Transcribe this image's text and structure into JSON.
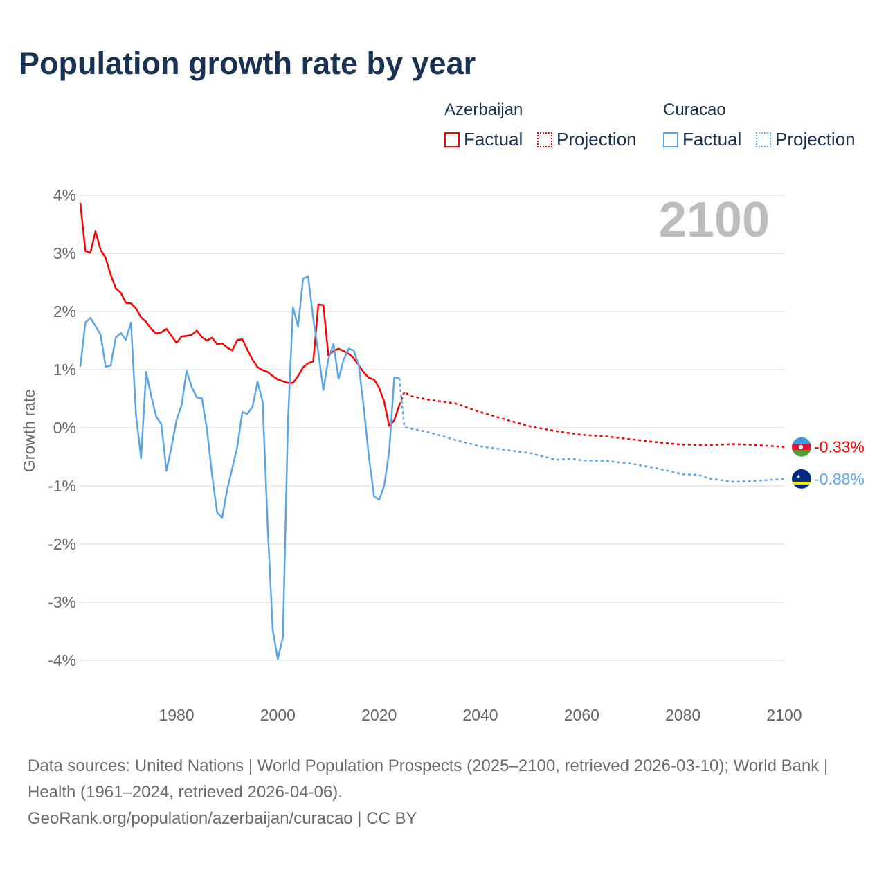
{
  "title": "Population growth rate by year",
  "legend": {
    "groups": [
      {
        "name": "Azerbaijan",
        "factual": "Factual",
        "projection": "Projection",
        "color": "#ff0000"
      },
      {
        "name": "Curacao",
        "factual": "Factual",
        "projection": "Projection",
        "color": "#5aa5ea"
      }
    ]
  },
  "year_overlay": "2100",
  "source": {
    "line1": "Data sources: United Nations | World Population Prospects (2025–2100, retrieved 2026-03-10); World Bank | Health (1961–2024, retrieved 2026-04-06).",
    "line2": "GeoRank.org/population/azerbaijan/curacao | CC BY"
  },
  "chart_data": {
    "type": "line",
    "title": "Population growth rate by year",
    "xlabel": "",
    "ylabel": "Growth rate",
    "xlim": [
      1961,
      2100
    ],
    "ylim": [
      -4,
      4
    ],
    "x_ticks": [
      1980,
      2000,
      2020,
      2040,
      2060,
      2080,
      2100
    ],
    "y_ticks": [
      4,
      3,
      2,
      1,
      0,
      -1,
      -2,
      -3,
      -4
    ],
    "y_tick_labels": [
      "4%",
      "3%",
      "2%",
      "1%",
      "0%",
      "-1%",
      "-2%",
      "-3%",
      "-4%"
    ],
    "grid": true,
    "legend_position": "top-right",
    "series": [
      {
        "name": "Azerbaijan",
        "color": "#ff0000",
        "end_label": "-0.33%",
        "flag": "azerbaijan-flag",
        "factual": {
          "x": [
            1961,
            1962,
            1963,
            1964,
            1965,
            1966,
            1967,
            1968,
            1969,
            1970,
            1971,
            1972,
            1973,
            1974,
            1975,
            1976,
            1977,
            1978,
            1979,
            1980,
            1981,
            1982,
            1983,
            1984,
            1985,
            1986,
            1987,
            1988,
            1989,
            1990,
            1991,
            1992,
            1993,
            1994,
            1995,
            1996,
            1997,
            1998,
            1999,
            2000,
            2001,
            2002,
            2003,
            2004,
            2005,
            2006,
            2007,
            2008,
            2009,
            2010,
            2011,
            2012,
            2013,
            2014,
            2015,
            2016,
            2017,
            2018,
            2019,
            2020,
            2021,
            2022,
            2023,
            2024
          ],
          "y": [
            3.87,
            3.04,
            3.01,
            3.38,
            3.06,
            2.92,
            2.63,
            2.4,
            2.32,
            2.15,
            2.14,
            2.05,
            1.9,
            1.82,
            1.7,
            1.62,
            1.64,
            1.7,
            1.58,
            1.46,
            1.57,
            1.58,
            1.6,
            1.67,
            1.56,
            1.5,
            1.55,
            1.44,
            1.45,
            1.38,
            1.33,
            1.51,
            1.52,
            1.34,
            1.17,
            1.04,
            0.99,
            0.96,
            0.89,
            0.83,
            0.8,
            0.77,
            0.77,
            0.89,
            1.04,
            1.11,
            1.14,
            2.12,
            2.11,
            1.24,
            1.32,
            1.36,
            1.32,
            1.27,
            1.2,
            1.07,
            0.95,
            0.86,
            0.83,
            0.69,
            0.45,
            0.03,
            0.13,
            0.39
          ]
        },
        "projection": {
          "x": [
            2024,
            2025,
            2026,
            2030,
            2035,
            2040,
            2045,
            2050,
            2055,
            2060,
            2065,
            2070,
            2075,
            2080,
            2085,
            2090,
            2095,
            2100
          ],
          "y": [
            0.39,
            0.62,
            0.55,
            0.48,
            0.42,
            0.27,
            0.14,
            0.02,
            -0.06,
            -0.12,
            -0.15,
            -0.2,
            -0.25,
            -0.29,
            -0.3,
            -0.28,
            -0.3,
            -0.33
          ]
        }
      },
      {
        "name": "Curacao",
        "color": "#5aa5ea",
        "end_label": "-0.88%",
        "flag": "curacao-flag",
        "factual": {
          "x": [
            1961,
            1962,
            1963,
            1964,
            1965,
            1966,
            1967,
            1968,
            1969,
            1970,
            1971,
            1972,
            1973,
            1974,
            1975,
            1976,
            1977,
            1978,
            1979,
            1980,
            1981,
            1982,
            1983,
            1984,
            1985,
            1986,
            1987,
            1988,
            1989,
            1990,
            1991,
            1992,
            1993,
            1994,
            1995,
            1996,
            1997,
            1998,
            1999,
            2000,
            2001,
            2002,
            2003,
            2004,
            2005,
            2006,
            2007,
            2008,
            2009,
            2010,
            2011,
            2012,
            2013,
            2014,
            2015,
            2016,
            2017,
            2018,
            2019,
            2020,
            2021,
            2022,
            2023,
            2024
          ],
          "y": [
            1.05,
            1.81,
            1.89,
            1.75,
            1.6,
            1.05,
            1.07,
            1.55,
            1.63,
            1.51,
            1.81,
            0.21,
            -0.52,
            0.96,
            0.55,
            0.19,
            0.06,
            -0.74,
            -0.33,
            0.13,
            0.39,
            0.98,
            0.7,
            0.52,
            0.51,
            -0.02,
            -0.79,
            -1.45,
            -1.55,
            -1.06,
            -0.7,
            -0.33,
            0.27,
            0.24,
            0.36,
            0.79,
            0.45,
            -1.69,
            -3.48,
            -3.98,
            -3.6,
            0.1,
            2.07,
            1.74,
            2.57,
            2.6,
            1.88,
            1.29,
            0.65,
            1.19,
            1.44,
            0.84,
            1.17,
            1.36,
            1.33,
            1.07,
            0.33,
            -0.5,
            -1.18,
            -1.24,
            -1.0,
            -0.4,
            0.87,
            0.85
          ]
        },
        "projection": {
          "x": [
            2024,
            2025,
            2030,
            2035,
            2040,
            2045,
            2050,
            2055,
            2058,
            2060,
            2065,
            2070,
            2075,
            2080,
            2083,
            2085,
            2090,
            2095,
            2100
          ],
          "y": [
            0.85,
            0.01,
            -0.08,
            -0.21,
            -0.32,
            -0.38,
            -0.44,
            -0.55,
            -0.53,
            -0.56,
            -0.57,
            -0.62,
            -0.7,
            -0.8,
            -0.81,
            -0.87,
            -0.93,
            -0.91,
            -0.88
          ]
        }
      }
    ]
  }
}
